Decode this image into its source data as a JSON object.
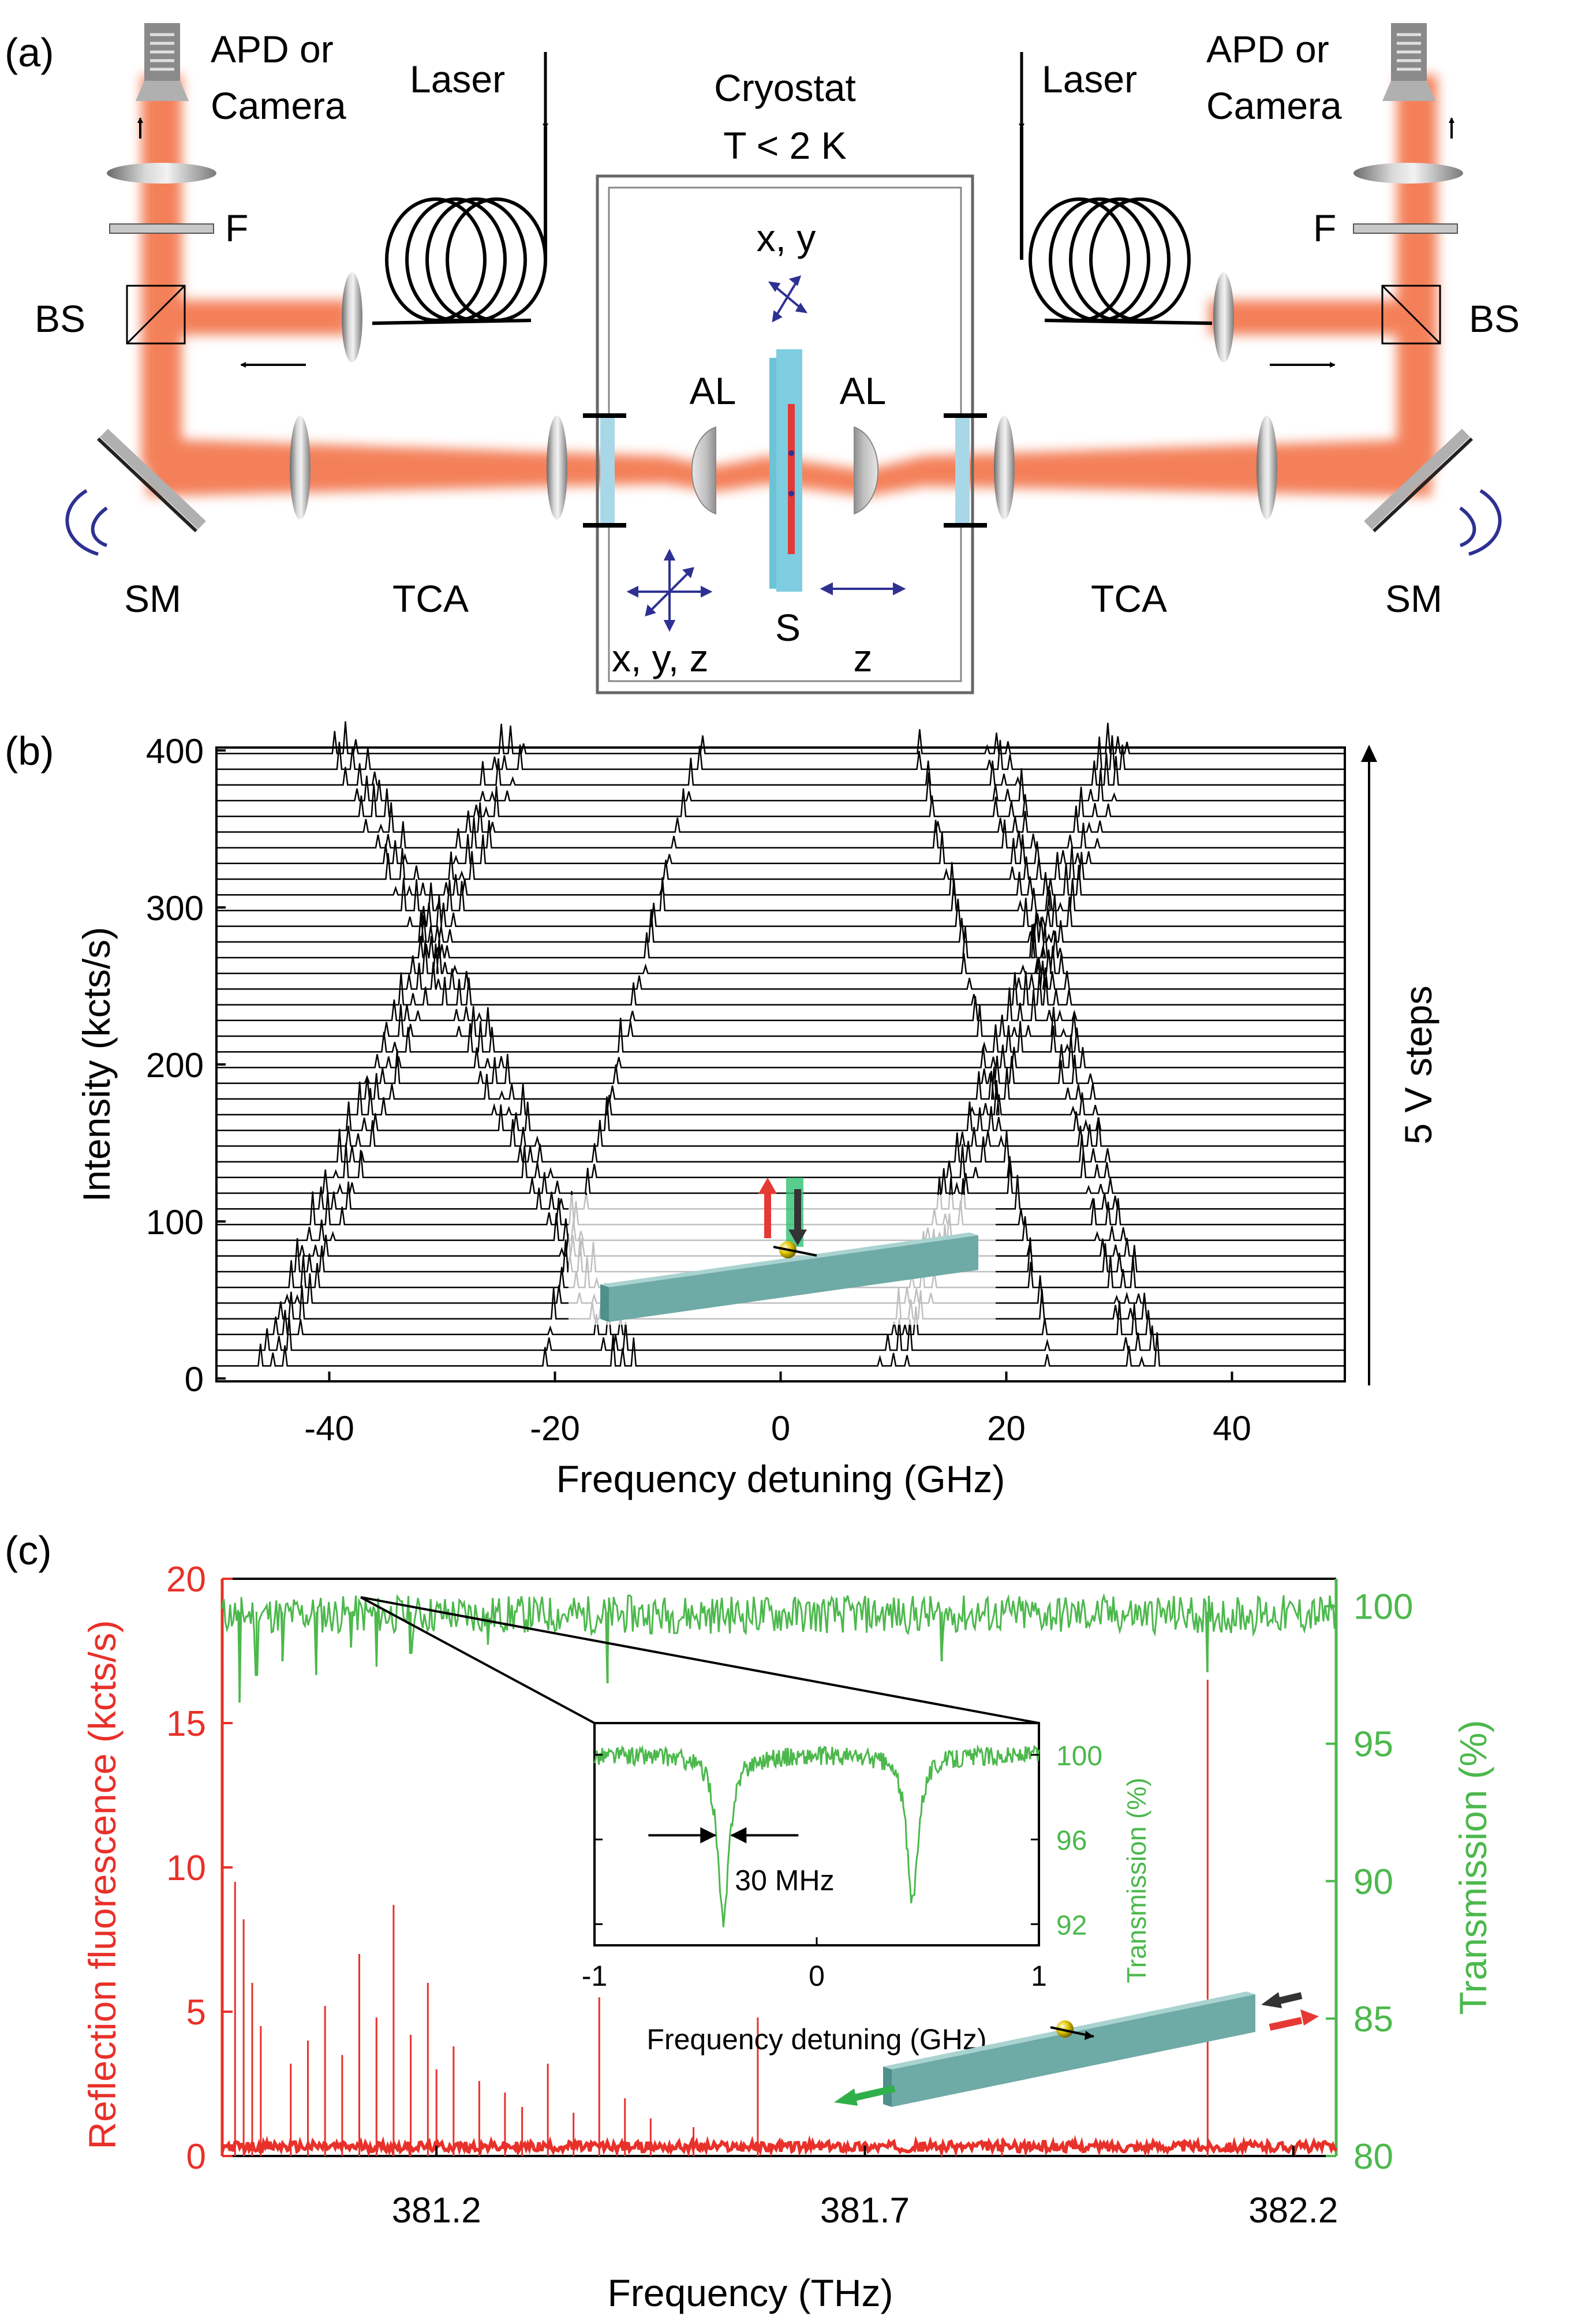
{
  "panel_a": {
    "panel_label": "(a)",
    "left": {
      "detector_line1": "APD or",
      "detector_line2": "Camera",
      "laser": "Laser",
      "filter": "F",
      "beamsplitter": "BS",
      "mirror": "SM",
      "telescope": "TCA"
    },
    "right": {
      "detector_line1": "APD or",
      "detector_line2": "Camera",
      "laser": "Laser",
      "filter": "F",
      "beamsplitter": "BS",
      "mirror": "SM",
      "telescope": "TCA"
    },
    "cryostat_line1": "Cryostat",
    "cryostat_line2": "T < 2 K",
    "stage_xy": "x, y",
    "stage_xyz": "x, y, z",
    "stage_z": "z",
    "lens_left": "AL",
    "lens_right": "AL",
    "sample": "S",
    "colors": {
      "beam": "#f26a3d",
      "stage_arrow": "#2e3192",
      "sample": "#6cc3d5",
      "waveguide": "#e53935"
    }
  },
  "panel_b": {
    "panel_label": "(b)",
    "step_label": "5 V steps",
    "chart_data": {
      "type": "line",
      "title": "",
      "xlabel": "Frequency detuning (GHz)",
      "ylabel": "Intensity (kcts/s)",
      "xlim": [
        -50,
        50
      ],
      "ylim": [
        0,
        400
      ],
      "xticks": [
        "-40",
        "-20",
        "0",
        "20",
        "40"
      ],
      "yticks": [
        "0",
        "100",
        "200",
        "300",
        "400"
      ],
      "n_traces": 40,
      "trace_offset_kcts": 10,
      "peak_groups_GHz_at_first_trace": [
        -45,
        -14,
        10,
        32
      ],
      "peak_shift_per_trace_GHz": 0.6,
      "peak_color": "#000000"
    }
  },
  "panel_c": {
    "panel_label": "(c)",
    "chart_data": {
      "type": "line",
      "xlabel": "Frequency (THz)",
      "ylabel_left": "Reflection fluorescence (kcts/s)",
      "ylabel_right": "Transmission (%)",
      "xlim": [
        380.95,
        382.25
      ],
      "ylim_left": [
        0,
        20
      ],
      "ylim_right": [
        80,
        101
      ],
      "xticks": [
        "381.2",
        "381.7",
        "382.2"
      ],
      "yticks_left": [
        "0",
        "5",
        "10",
        "15",
        "20"
      ],
      "yticks_right": [
        "80",
        "85",
        "90",
        "95",
        "100"
      ],
      "series": [
        {
          "name": "Reflection fluorescence",
          "color": "#e8312a",
          "peaks": [
            {
              "x": 380.965,
              "y": 9.5
            },
            {
              "x": 380.975,
              "y": 8.2
            },
            {
              "x": 380.985,
              "y": 6.0
            },
            {
              "x": 380.995,
              "y": 4.5
            },
            {
              "x": 381.03,
              "y": 3.2
            },
            {
              "x": 381.05,
              "y": 4.0
            },
            {
              "x": 381.07,
              "y": 5.2
            },
            {
              "x": 381.09,
              "y": 3.5
            },
            {
              "x": 381.11,
              "y": 7.0
            },
            {
              "x": 381.13,
              "y": 4.8
            },
            {
              "x": 381.15,
              "y": 8.7
            },
            {
              "x": 381.17,
              "y": 4.2
            },
            {
              "x": 381.19,
              "y": 6.0
            },
            {
              "x": 381.2,
              "y": 3.0
            },
            {
              "x": 381.22,
              "y": 3.8
            },
            {
              "x": 381.25,
              "y": 2.6
            },
            {
              "x": 381.28,
              "y": 2.2
            },
            {
              "x": 381.3,
              "y": 1.7
            },
            {
              "x": 381.33,
              "y": 3.2
            },
            {
              "x": 381.36,
              "y": 1.5
            },
            {
              "x": 381.39,
              "y": 5.5
            },
            {
              "x": 381.42,
              "y": 2.0
            },
            {
              "x": 381.45,
              "y": 1.3
            },
            {
              "x": 381.5,
              "y": 1.0
            },
            {
              "x": 381.575,
              "y": 4.8
            },
            {
              "x": 381.86,
              "y": 0.6
            },
            {
              "x": 382.1,
              "y": 16.5
            }
          ]
        },
        {
          "name": "Transmission",
          "color": "#4cb84c",
          "dips": [
            {
              "x": 380.97,
              "y": 96.5
            },
            {
              "x": 380.99,
              "y": 97.5
            },
            {
              "x": 381.02,
              "y": 98.0
            },
            {
              "x": 381.06,
              "y": 97.5
            },
            {
              "x": 381.1,
              "y": 98.5
            },
            {
              "x": 381.13,
              "y": 97.8
            },
            {
              "x": 381.17,
              "y": 98.3
            },
            {
              "x": 381.26,
              "y": 98.6
            },
            {
              "x": 381.4,
              "y": 97.2
            },
            {
              "x": 381.79,
              "y": 98.0
            },
            {
              "x": 382.1,
              "y": 97.6
            }
          ]
        }
      ],
      "inset": {
        "xlabel": "Frequency detuning (GHz)",
        "ylabel": "Transmission (%)",
        "xlim": [
          -1,
          1
        ],
        "ylim": [
          91,
          101.5
        ],
        "xticks": [
          "-1",
          "0",
          "1"
        ],
        "yticks": [
          "92",
          "96",
          "100"
        ],
        "dips": [
          {
            "x": -0.42,
            "y": 92.0
          },
          {
            "x": 0.43,
            "y": 93.0
          }
        ],
        "linewidth_label": "30 MHz"
      }
    }
  }
}
